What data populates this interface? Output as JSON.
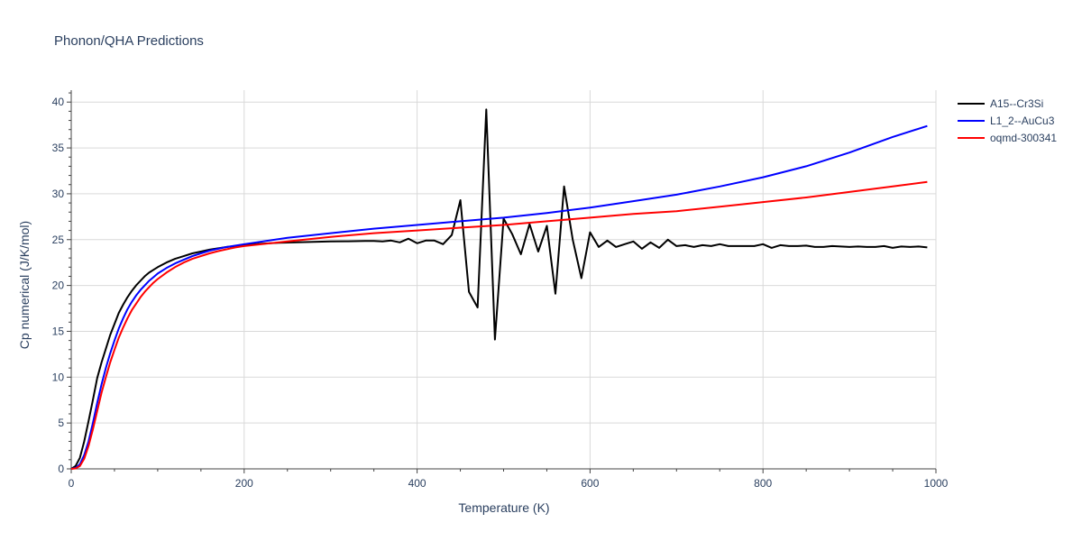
{
  "chart_data": {
    "type": "line",
    "title": "Phonon/QHA Predictions",
    "xlabel": "Temperature (K)",
    "ylabel": "Cp numerical (J/K/mol)",
    "xlim": [
      0,
      1000
    ],
    "ylim": [
      0,
      41.3
    ],
    "x_ticks": [
      0,
      200,
      400,
      600,
      800,
      1000
    ],
    "y_ticks": [
      0,
      5,
      10,
      15,
      20,
      25,
      30,
      35,
      40
    ],
    "grid": true,
    "legend_position": "top-right",
    "series": [
      {
        "name": "A15--Cr3Si",
        "color": "#000000",
        "x": [
          0,
          5,
          10,
          15,
          20,
          25,
          30,
          35,
          40,
          45,
          50,
          55,
          60,
          65,
          70,
          75,
          80,
          85,
          90,
          95,
          100,
          110,
          120,
          130,
          140,
          150,
          160,
          170,
          180,
          190,
          200,
          220,
          240,
          260,
          280,
          300,
          320,
          340,
          350,
          360,
          370,
          380,
          390,
          400,
          410,
          420,
          430,
          440,
          450,
          460,
          470,
          480,
          490,
          500,
          510,
          520,
          530,
          540,
          550,
          560,
          570,
          580,
          590,
          600,
          610,
          620,
          630,
          640,
          650,
          660,
          670,
          680,
          690,
          700,
          710,
          720,
          730,
          740,
          750,
          760,
          770,
          780,
          790,
          800,
          810,
          820,
          830,
          840,
          850,
          860,
          870,
          880,
          890,
          900,
          910,
          920,
          930,
          940,
          950,
          960,
          970,
          980,
          990
        ],
        "y": [
          0,
          0.3,
          1.2,
          3.0,
          5.2,
          7.5,
          9.9,
          11.6,
          13.1,
          14.6,
          15.8,
          17.0,
          17.9,
          18.7,
          19.4,
          20.0,
          20.5,
          21.0,
          21.4,
          21.7,
          22.0,
          22.5,
          22.9,
          23.2,
          23.5,
          23.7,
          23.9,
          24.05,
          24.2,
          24.3,
          24.4,
          24.55,
          24.65,
          24.7,
          24.75,
          24.8,
          24.82,
          24.85,
          24.85,
          24.8,
          24.9,
          24.7,
          25.1,
          24.6,
          24.9,
          24.9,
          24.5,
          25.5,
          29.3,
          19.3,
          17.6,
          39.2,
          14.1,
          27.3,
          25.6,
          23.4,
          26.7,
          23.7,
          26.5,
          19.1,
          30.8,
          25.0,
          20.8,
          25.8,
          24.2,
          24.9,
          24.2,
          24.5,
          24.8,
          24.0,
          24.7,
          24.1,
          25.0,
          24.3,
          24.4,
          24.2,
          24.4,
          24.3,
          24.5,
          24.3,
          24.3,
          24.3,
          24.3,
          24.5,
          24.1,
          24.4,
          24.3,
          24.3,
          24.35,
          24.2,
          24.2,
          24.3,
          24.25,
          24.2,
          24.25,
          24.2,
          24.2,
          24.3,
          24.1,
          24.25,
          24.2,
          24.25,
          24.15
        ]
      },
      {
        "name": "L1_2--AuCu3",
        "color": "#0000ff",
        "x": [
          0,
          5,
          10,
          15,
          20,
          25,
          30,
          35,
          40,
          45,
          50,
          55,
          60,
          65,
          70,
          75,
          80,
          85,
          90,
          95,
          100,
          110,
          120,
          130,
          140,
          150,
          160,
          170,
          180,
          190,
          200,
          250,
          300,
          350,
          400,
          450,
          500,
          550,
          600,
          650,
          700,
          750,
          800,
          850,
          900,
          950,
          990
        ],
        "y": [
          0,
          0.1,
          0.5,
          1.5,
          3.0,
          5.0,
          7.2,
          9.2,
          11.0,
          12.6,
          14.0,
          15.3,
          16.4,
          17.4,
          18.2,
          18.9,
          19.5,
          20.0,
          20.5,
          20.9,
          21.3,
          21.9,
          22.4,
          22.8,
          23.2,
          23.5,
          23.8,
          24.0,
          24.2,
          24.35,
          24.5,
          25.2,
          25.7,
          26.2,
          26.6,
          27.0,
          27.4,
          27.9,
          28.5,
          29.2,
          29.9,
          30.8,
          31.8,
          33.0,
          34.5,
          36.2,
          37.4
        ]
      },
      {
        "name": "oqmd-300341",
        "color": "#ff0000",
        "x": [
          0,
          5,
          10,
          15,
          20,
          25,
          30,
          35,
          40,
          45,
          50,
          55,
          60,
          65,
          70,
          75,
          80,
          85,
          90,
          95,
          100,
          110,
          120,
          130,
          140,
          150,
          160,
          170,
          180,
          190,
          200,
          250,
          300,
          350,
          400,
          450,
          500,
          550,
          600,
          650,
          700,
          750,
          800,
          850,
          900,
          950,
          990
        ],
        "y": [
          0,
          0.05,
          0.3,
          1.1,
          2.5,
          4.3,
          6.3,
          8.3,
          10.0,
          11.6,
          13.0,
          14.3,
          15.4,
          16.4,
          17.3,
          18.0,
          18.7,
          19.3,
          19.8,
          20.3,
          20.7,
          21.4,
          22.0,
          22.5,
          22.9,
          23.2,
          23.5,
          23.75,
          23.95,
          24.15,
          24.3,
          24.8,
          25.3,
          25.7,
          26.0,
          26.3,
          26.6,
          27.0,
          27.4,
          27.8,
          28.1,
          28.6,
          29.1,
          29.6,
          30.2,
          30.8,
          31.3
        ]
      }
    ]
  }
}
